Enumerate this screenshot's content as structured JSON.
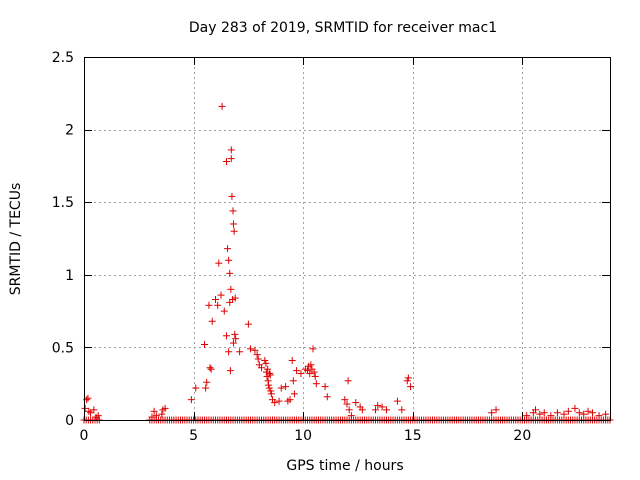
{
  "chart_data": {
    "type": "scatter",
    "title": "Day 283 of 2019, SRMTID for receiver mac1",
    "xlabel": "GPS time / hours",
    "ylabel": "SRMTID / TECUs",
    "xlim": [
      0,
      24
    ],
    "ylim": [
      0,
      2.5
    ],
    "x_ticks": [
      0,
      5,
      10,
      15,
      20
    ],
    "x_tick_labels": [
      "0",
      "5",
      "10",
      "15",
      "20"
    ],
    "y_ticks": [
      0,
      0.5,
      1,
      1.5,
      2,
      2.5
    ],
    "y_tick_labels": [
      "0",
      "0.5",
      "1",
      "1.5",
      "2",
      "2.5"
    ],
    "grid": true,
    "marker": "+",
    "series": [
      {
        "name": "SRMTID",
        "color": "#dd0000",
        "points": [
          [
            0.05,
            0.08
          ],
          [
            0.12,
            0.14
          ],
          [
            0.18,
            0.15
          ],
          [
            0.22,
            0.06
          ],
          [
            0.3,
            0.05
          ],
          [
            0.45,
            0.07
          ],
          [
            0.55,
            0.02
          ],
          [
            0.65,
            0.03
          ],
          [
            3.1,
            0.02
          ],
          [
            3.2,
            0.06
          ],
          [
            3.3,
            0.03
          ],
          [
            3.55,
            0.04
          ],
          [
            3.6,
            0.07
          ],
          [
            3.7,
            0.08
          ],
          [
            4.9,
            0.14
          ],
          [
            5.1,
            0.22
          ],
          [
            5.5,
            0.52
          ],
          [
            5.55,
            0.22
          ],
          [
            5.6,
            0.26
          ],
          [
            5.7,
            0.79
          ],
          [
            5.75,
            0.36
          ],
          [
            5.8,
            0.35
          ],
          [
            5.85,
            0.68
          ],
          [
            6.0,
            0.83
          ],
          [
            6.1,
            0.79
          ],
          [
            6.15,
            1.08
          ],
          [
            6.25,
            0.86
          ],
          [
            6.3,
            2.16
          ],
          [
            6.4,
            0.75
          ],
          [
            6.5,
            0.58
          ],
          [
            6.5,
            1.78
          ],
          [
            6.55,
            1.18
          ],
          [
            6.6,
            0.47
          ],
          [
            6.6,
            1.1
          ],
          [
            6.65,
            1.01
          ],
          [
            6.65,
            0.81
          ],
          [
            6.68,
            0.34
          ],
          [
            6.7,
            0.9
          ],
          [
            6.72,
            1.86
          ],
          [
            6.72,
            1.8
          ],
          [
            6.75,
            1.54
          ],
          [
            6.78,
            0.83
          ],
          [
            6.8,
            1.44
          ],
          [
            6.82,
            0.53
          ],
          [
            6.82,
            1.35
          ],
          [
            6.85,
            1.3
          ],
          [
            6.88,
            0.59
          ],
          [
            6.9,
            0.84
          ],
          [
            6.92,
            0.56
          ],
          [
            7.1,
            0.47
          ],
          [
            7.5,
            0.66
          ],
          [
            7.6,
            0.49
          ],
          [
            7.8,
            0.48
          ],
          [
            7.9,
            0.45
          ],
          [
            7.95,
            0.42
          ],
          [
            8.0,
            0.38
          ],
          [
            8.1,
            0.36
          ],
          [
            8.25,
            0.41
          ],
          [
            8.3,
            0.39
          ],
          [
            8.32,
            0.33
          ],
          [
            8.35,
            0.3
          ],
          [
            8.38,
            0.35
          ],
          [
            8.4,
            0.27
          ],
          [
            8.42,
            0.24
          ],
          [
            8.45,
            0.22
          ],
          [
            8.47,
            0.32
          ],
          [
            8.5,
            0.31
          ],
          [
            8.52,
            0.2
          ],
          [
            8.55,
            0.18
          ],
          [
            8.6,
            0.14
          ],
          [
            8.7,
            0.12
          ],
          [
            8.9,
            0.13
          ],
          [
            9.0,
            0.22
          ],
          [
            9.2,
            0.23
          ],
          [
            9.3,
            0.13
          ],
          [
            9.4,
            0.14
          ],
          [
            9.5,
            0.41
          ],
          [
            9.55,
            0.27
          ],
          [
            9.6,
            0.18
          ],
          [
            9.7,
            0.34
          ],
          [
            9.9,
            0.32
          ],
          [
            10.1,
            0.35
          ],
          [
            10.2,
            0.34
          ],
          [
            10.25,
            0.37
          ],
          [
            10.3,
            0.32
          ],
          [
            10.35,
            0.38
          ],
          [
            10.4,
            0.35
          ],
          [
            10.45,
            0.49
          ],
          [
            10.5,
            0.33
          ],
          [
            10.55,
            0.3
          ],
          [
            10.6,
            0.25
          ],
          [
            11.0,
            0.23
          ],
          [
            11.1,
            0.16
          ],
          [
            11.9,
            0.14
          ],
          [
            12.0,
            0.11
          ],
          [
            12.05,
            0.27
          ],
          [
            12.1,
            0.07
          ],
          [
            12.2,
            0.03
          ],
          [
            12.4,
            0.12
          ],
          [
            12.6,
            0.09
          ],
          [
            12.7,
            0.07
          ],
          [
            13.3,
            0.07
          ],
          [
            13.4,
            0.1
          ],
          [
            13.6,
            0.09
          ],
          [
            13.8,
            0.07
          ],
          [
            14.3,
            0.13
          ],
          [
            14.5,
            0.07
          ],
          [
            14.75,
            0.27
          ],
          [
            14.8,
            0.29
          ],
          [
            14.9,
            0.23
          ],
          [
            18.6,
            0.05
          ],
          [
            18.8,
            0.07
          ],
          [
            20.2,
            0.03
          ],
          [
            20.5,
            0.05
          ],
          [
            20.6,
            0.07
          ],
          [
            20.8,
            0.04
          ],
          [
            21.0,
            0.05
          ],
          [
            21.3,
            0.03
          ],
          [
            21.6,
            0.05
          ],
          [
            21.9,
            0.04
          ],
          [
            22.1,
            0.06
          ],
          [
            22.4,
            0.08
          ],
          [
            22.6,
            0.05
          ],
          [
            22.8,
            0.04
          ],
          [
            23.0,
            0.06
          ],
          [
            23.2,
            0.05
          ],
          [
            23.5,
            0.03
          ],
          [
            23.8,
            0.04
          ]
        ],
        "zero_baseline_segments": [
          [
            0.0,
            0.7
          ],
          [
            3.0,
            24.0
          ]
        ]
      }
    ]
  }
}
